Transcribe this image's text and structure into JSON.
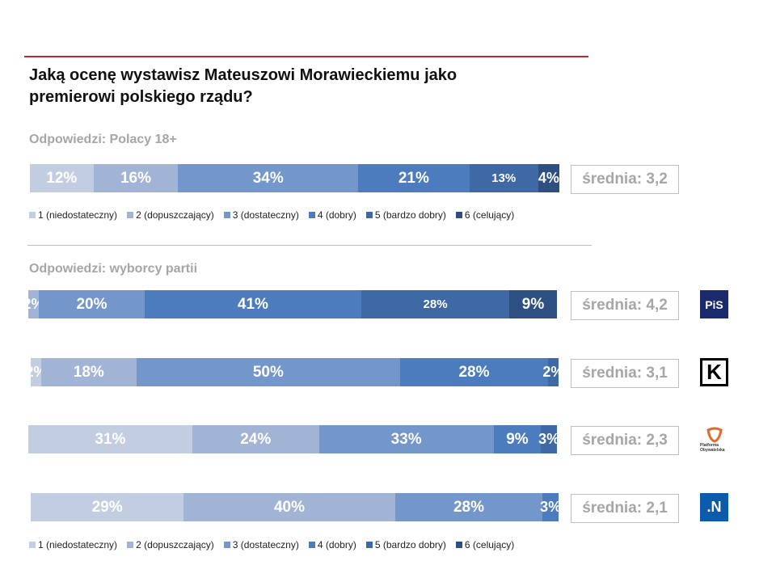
{
  "chart_data": {
    "type": "bar",
    "orientation": "horizontal-stacked-100",
    "title": "Jaką ocenę wystawisz Mateuszowi Morawieckiemu jako premierowi polskiego rządu?",
    "legend": [
      "1 (niedostateczny)",
      "2 (dopuszczający)",
      "3 (dostateczny)",
      "4 (dobry)",
      "5 (bardzo dobry)",
      "6 (celujący)"
    ],
    "colors": [
      "#c3cde2",
      "#a2b4d6",
      "#7396cb",
      "#4c7cbd",
      "#3f69a5",
      "#2d4f82"
    ],
    "sections": [
      {
        "label": "Odpowiedzi:  Polacy 18+",
        "rows": [
          {
            "name": "Polacy 18+",
            "values": [
              12,
              16,
              34,
              21,
              13,
              4
            ],
            "labels": [
              "12%",
              "16%",
              "34%",
              "21%",
              "13%",
              "4%"
            ],
            "average": "średnia: 3,2",
            "logo": ""
          }
        ]
      },
      {
        "label": "Odpowiedzi:  wyborcy partii",
        "rows": [
          {
            "name": "PiS",
            "values": [
              0,
              2,
              20,
              41,
              28,
              9
            ],
            "labels": [
              "",
              "2%",
              "20%",
              "41%",
              "28%",
              "9%"
            ],
            "average": "średnia: 4,2",
            "logo": "PiS"
          },
          {
            "name": "Kukiz'15",
            "values": [
              2,
              18,
              50,
              28,
              2,
              0
            ],
            "labels": [
              "2%",
              "18%",
              "50%",
              "28%",
              "2%",
              ""
            ],
            "average": "średnia: 3,1",
            "logo": "K"
          },
          {
            "name": "Platforma Obywatelska",
            "values": [
              31,
              24,
              33,
              9,
              3,
              0
            ],
            "labels": [
              "31%",
              "24%",
              "33%",
              "9%",
              "3%",
              ""
            ],
            "average": "średnia: 2,3",
            "logo": "Platforma Obywatelska"
          },
          {
            "name": "Nowoczesna",
            "values": [
              29,
              40,
              28,
              3,
              0,
              0
            ],
            "labels": [
              "29%",
              "40%",
              "28%",
              "3%",
              "",
              ""
            ],
            "average": "średnia: 2,1",
            "logo": ".N"
          }
        ]
      }
    ]
  }
}
